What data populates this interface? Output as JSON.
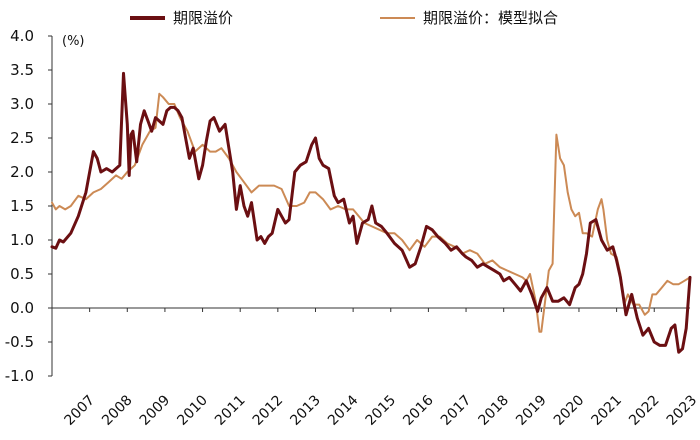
{
  "chart_data": {
    "type": "line",
    "unit_label": "(%)",
    "ylim": [
      -1.0,
      4.0
    ],
    "y_ticks": [
      "4.0",
      "3.5",
      "3.0",
      "2.5",
      "2.0",
      "1.5",
      "1.0",
      "0.5",
      "0.0",
      "-0.5",
      "-1.0"
    ],
    "x_ticks": [
      "2007",
      "2008",
      "2009",
      "2010",
      "2011",
      "2012",
      "2013",
      "2014",
      "2015",
      "2016",
      "2017",
      "2018",
      "2019",
      "2020",
      "2021",
      "2022",
      "2023"
    ],
    "xlim": [
      2007.0,
      2023.95
    ],
    "grid": false,
    "legend": "top",
    "series": [
      {
        "name": "期限溢价",
        "color": "#6b0f12",
        "x": [
          2007.0,
          2007.1,
          2007.2,
          2007.3,
          2007.5,
          2007.7,
          2007.9,
          2008.1,
          2008.2,
          2008.3,
          2008.45,
          2008.6,
          2008.8,
          2008.9,
          2009.0,
          2009.05,
          2009.1,
          2009.15,
          2009.25,
          2009.35,
          2009.45,
          2009.55,
          2009.65,
          2009.75,
          2009.85,
          2009.95,
          2010.05,
          2010.15,
          2010.25,
          2010.35,
          2010.45,
          2010.55,
          2010.65,
          2010.75,
          2010.9,
          2011.0,
          2011.1,
          2011.2,
          2011.3,
          2011.45,
          2011.6,
          2011.7,
          2011.8,
          2011.9,
          2012.0,
          2012.1,
          2012.2,
          2012.3,
          2012.45,
          2012.55,
          2012.65,
          2012.75,
          2012.85,
          2013.0,
          2013.1,
          2013.2,
          2013.3,
          2013.45,
          2013.6,
          2013.75,
          2013.9,
          2014.0,
          2014.1,
          2014.2,
          2014.35,
          2014.5,
          2014.6,
          2014.75,
          2014.9,
          2015.0,
          2015.1,
          2015.25,
          2015.4,
          2015.5,
          2015.6,
          2015.75,
          2015.9,
          2016.1,
          2016.3,
          2016.5,
          2016.65,
          2016.8,
          2016.95,
          2017.1,
          2017.25,
          2017.45,
          2017.6,
          2017.75,
          2017.9,
          2018.0,
          2018.15,
          2018.3,
          2018.45,
          2018.6,
          2018.75,
          2018.9,
          2019.0,
          2019.15,
          2019.3,
          2019.45,
          2019.6,
          2019.75,
          2019.9,
          2020.0,
          2020.15,
          2020.3,
          2020.45,
          2020.6,
          2020.75,
          2020.9,
          2021.0,
          2021.1,
          2021.2,
          2021.3,
          2021.45,
          2021.6,
          2021.75,
          2021.9,
          2022.0,
          2022.1,
          2022.25,
          2022.4,
          2022.55,
          2022.7,
          2022.85,
          2023.0,
          2023.15,
          2023.3,
          2023.45,
          2023.55,
          2023.65,
          2023.75,
          2023.85,
          2023.95
        ],
        "values": [
          0.9,
          0.88,
          1.0,
          0.97,
          1.1,
          1.35,
          1.7,
          2.3,
          2.2,
          2.0,
          2.05,
          2.0,
          2.1,
          3.45,
          2.7,
          1.95,
          2.55,
          2.6,
          2.15,
          2.7,
          2.9,
          2.75,
          2.6,
          2.8,
          2.75,
          2.7,
          2.9,
          2.95,
          2.95,
          2.9,
          2.8,
          2.5,
          2.2,
          2.35,
          1.9,
          2.1,
          2.45,
          2.75,
          2.8,
          2.6,
          2.7,
          2.35,
          2.0,
          1.45,
          1.8,
          1.5,
          1.35,
          1.55,
          1.0,
          1.05,
          0.95,
          1.05,
          1.1,
          1.45,
          1.35,
          1.25,
          1.3,
          2.0,
          2.1,
          2.15,
          2.4,
          2.5,
          2.2,
          2.1,
          2.05,
          1.65,
          1.55,
          1.6,
          1.25,
          1.35,
          0.95,
          1.25,
          1.3,
          1.5,
          1.25,
          1.2,
          1.1,
          0.95,
          0.85,
          0.6,
          0.65,
          0.9,
          1.2,
          1.15,
          1.05,
          0.95,
          0.85,
          0.9,
          0.8,
          0.75,
          0.7,
          0.6,
          0.65,
          0.6,
          0.55,
          0.5,
          0.4,
          0.45,
          0.35,
          0.25,
          0.4,
          0.2,
          -0.05,
          0.15,
          0.3,
          0.1,
          0.1,
          0.15,
          0.05,
          0.3,
          0.35,
          0.5,
          0.8,
          1.25,
          1.3,
          1.0,
          0.85,
          0.9,
          0.7,
          0.45,
          -0.1,
          0.2,
          -0.15,
          -0.4,
          -0.3,
          -0.5,
          -0.55,
          -0.55,
          -0.3,
          -0.25,
          -0.65,
          -0.6,
          -0.3,
          0.45
        ]
      },
      {
        "name": "期限溢价：模型拟合",
        "color": "#cc8a55",
        "x": [
          2007.0,
          2007.1,
          2007.2,
          2007.35,
          2007.5,
          2007.7,
          2007.9,
          2008.1,
          2008.3,
          2008.5,
          2008.7,
          2008.85,
          2009.0,
          2009.2,
          2009.4,
          2009.6,
          2009.75,
          2009.85,
          2009.95,
          2010.1,
          2010.25,
          2010.4,
          2010.6,
          2010.8,
          2011.0,
          2011.2,
          2011.35,
          2011.5,
          2011.7,
          2011.9,
          2012.1,
          2012.3,
          2012.5,
          2012.7,
          2012.9,
          2013.1,
          2013.3,
          2013.5,
          2013.7,
          2013.85,
          2014.0,
          2014.2,
          2014.4,
          2014.6,
          2014.8,
          2015.0,
          2015.3,
          2015.5,
          2015.7,
          2015.9,
          2016.1,
          2016.3,
          2016.5,
          2016.7,
          2016.9,
          2017.1,
          2017.3,
          2017.5,
          2017.7,
          2017.9,
          2018.1,
          2018.3,
          2018.5,
          2018.7,
          2018.9,
          2019.1,
          2019.3,
          2019.5,
          2019.6,
          2019.7,
          2019.85,
          2019.95,
          2020.0,
          2020.1,
          2020.2,
          2020.3,
          2020.4,
          2020.5,
          2020.6,
          2020.7,
          2020.8,
          2020.9,
          2021.0,
          2021.1,
          2021.2,
          2021.35,
          2021.5,
          2021.6,
          2021.65,
          2021.75,
          2021.85,
          2022.0,
          2022.1,
          2022.2,
          2022.3,
          2022.45,
          2022.6,
          2022.75,
          2022.85,
          2022.95,
          2023.05,
          2023.2,
          2023.35,
          2023.5,
          2023.65,
          2023.8,
          2023.95
        ],
        "values": [
          1.55,
          1.45,
          1.5,
          1.45,
          1.5,
          1.65,
          1.6,
          1.7,
          1.75,
          1.85,
          1.95,
          1.9,
          2.0,
          2.1,
          2.4,
          2.6,
          2.65,
          3.15,
          3.1,
          3.0,
          3.0,
          2.8,
          2.6,
          2.3,
          2.4,
          2.3,
          2.3,
          2.35,
          2.2,
          2.0,
          1.85,
          1.7,
          1.8,
          1.8,
          1.8,
          1.75,
          1.5,
          1.5,
          1.55,
          1.7,
          1.7,
          1.6,
          1.45,
          1.5,
          1.45,
          1.45,
          1.25,
          1.2,
          1.15,
          1.1,
          1.1,
          1.0,
          0.85,
          1.0,
          0.9,
          1.05,
          1.05,
          0.95,
          0.9,
          0.8,
          0.85,
          0.8,
          0.65,
          0.7,
          0.6,
          0.55,
          0.5,
          0.45,
          0.4,
          0.5,
          0.1,
          -0.35,
          -0.35,
          0.1,
          0.55,
          0.65,
          2.55,
          2.2,
          2.1,
          1.7,
          1.45,
          1.35,
          1.4,
          1.1,
          1.1,
          1.05,
          1.45,
          1.6,
          1.45,
          1.0,
          0.8,
          0.75,
          0.5,
          0.05,
          0.2,
          0.05,
          0.05,
          -0.1,
          -0.05,
          0.2,
          0.2,
          0.3,
          0.4,
          0.35,
          0.35,
          0.4,
          0.45
        ]
      }
    ]
  }
}
